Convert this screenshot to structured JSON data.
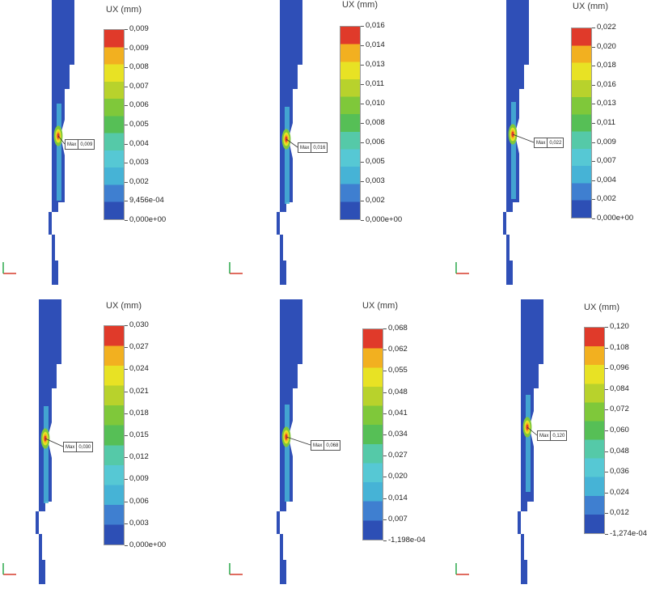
{
  "panels": [
    {
      "unit": "UX (mm)",
      "ticks": [
        "0,009",
        "0,009",
        "0,008",
        "0,007",
        "0,006",
        "0,005",
        "0,004",
        "0,003",
        "0,002",
        "9,456e-04",
        "0,000e+00"
      ],
      "max_label": "Max",
      "max_value": "0,009",
      "colors": {
        "top": "#e03a2a",
        "bottom": "#2d4fb5"
      }
    },
    {
      "unit": "UX (mm)",
      "ticks": [
        "0,016",
        "0,014",
        "0,013",
        "0,011",
        "0,010",
        "0,008",
        "0,006",
        "0,005",
        "0,003",
        "0,002",
        "0,000e+00"
      ],
      "max_label": "Max",
      "max_value": "0,016",
      "colors": {
        "top": "#e03a2a",
        "bottom": "#2d4fb5"
      }
    },
    {
      "unit": "UX (mm)",
      "ticks": [
        "0,022",
        "0,020",
        "0,018",
        "0,016",
        "0,013",
        "0,011",
        "0,009",
        "0,007",
        "0,004",
        "0,002",
        "0,000e+00"
      ],
      "max_label": "Max",
      "max_value": "0,022",
      "colors": {
        "top": "#e03a2a",
        "bottom": "#2d4fb5"
      }
    },
    {
      "unit": "UX (mm)",
      "ticks": [
        "0,030",
        "0,027",
        "0,024",
        "0,021",
        "0,018",
        "0,015",
        "0,012",
        "0,009",
        "0,006",
        "0,003",
        "0,000e+00"
      ],
      "max_label": "Max",
      "max_value": "0,030",
      "colors": {
        "top": "#e03a2a",
        "bottom": "#2d4fb5"
      }
    },
    {
      "unit": "UX (mm)",
      "ticks": [
        "0,068",
        "0,062",
        "0,055",
        "0,048",
        "0,041",
        "0,034",
        "0,027",
        "0,020",
        "0,014",
        "0,007",
        "-1,198e-04"
      ],
      "max_label": "Max",
      "max_value": "0,068",
      "colors": {
        "top": "#e03a2a",
        "bottom": "#2d4fb5"
      }
    },
    {
      "unit": "UX (mm)",
      "ticks": [
        "0,120",
        "0,108",
        "0,096",
        "0,084",
        "0,072",
        "0,060",
        "0,048",
        "0,036",
        "0,024",
        "0,012",
        "-1,274e-04"
      ],
      "max_label": "Max",
      "max_value": "0,120",
      "colors": {
        "top": "#e03a2a",
        "bottom": "#2d4fb5"
      }
    }
  ],
  "axis_triad": {
    "x": "X",
    "y": "Y",
    "z": "Z"
  }
}
